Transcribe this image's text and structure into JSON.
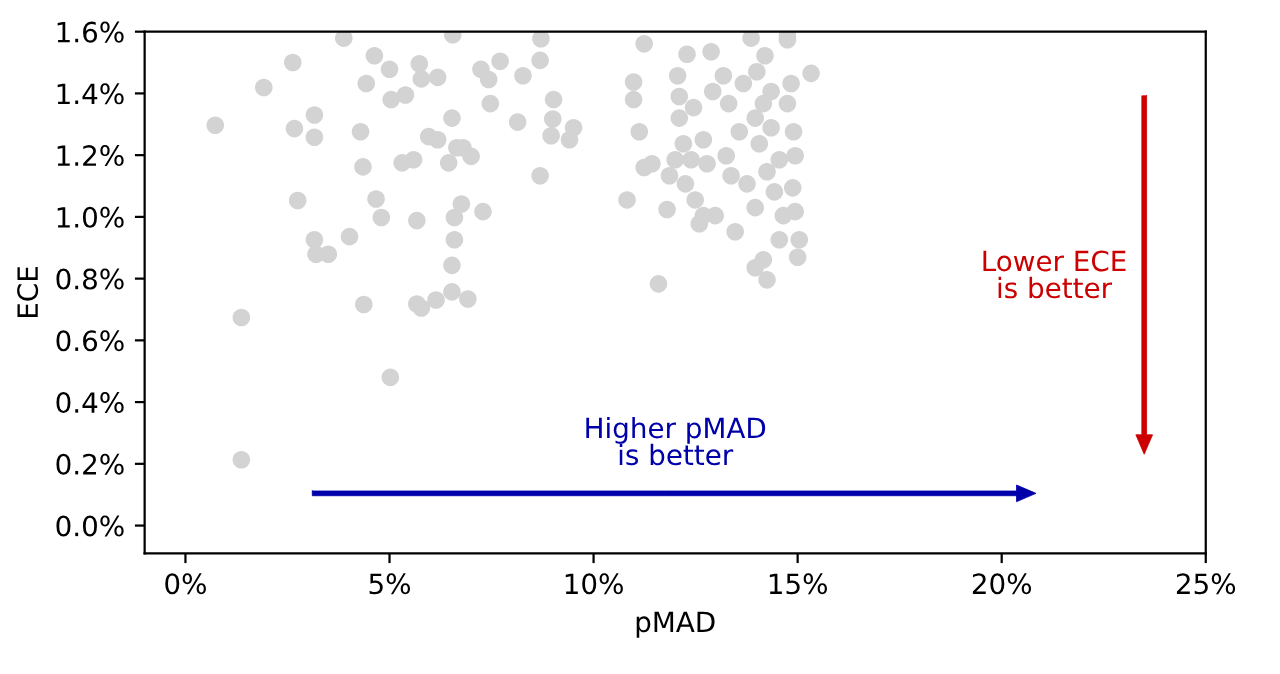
{
  "chart_data": {
    "type": "scatter",
    "xlabel": "pMAD",
    "ylabel": "ECE",
    "annotations": [
      "Higher pMAD\nis better",
      "Lower ECE\nis better"
    ],
    "xlim": [
      -1,
      25
    ],
    "ylim": [
      -0.09,
      1.6
    ],
    "xticks": [
      {
        "value": 0,
        "label": "0%"
      },
      {
        "value": 5,
        "label": "5%"
      },
      {
        "value": 10,
        "label": "10%"
      },
      {
        "value": 15,
        "label": "15%"
      },
      {
        "value": 20,
        "label": "20%"
      },
      {
        "value": 25,
        "label": "25%"
      }
    ],
    "yticks": [
      {
        "value": 0,
        "label": "0.0%"
      },
      {
        "value": 0.2,
        "label": "0.2%"
      },
      {
        "value": 0.4,
        "label": "0.4%"
      },
      {
        "value": 0.6,
        "label": "0.6%"
      },
      {
        "value": 0.8,
        "label": "0.8%"
      },
      {
        "value": 1.0,
        "label": "1.0%"
      },
      {
        "value": 1.2,
        "label": "1.2%"
      },
      {
        "value": 1.4,
        "label": "1.4%"
      },
      {
        "value": 1.6,
        "label": "1.6%"
      }
    ],
    "grid": false,
    "legend": false,
    "marker": "circle",
    "series": [
      {
        "color": "#d3d3d3",
        "x": [
          0.73,
          1.37,
          1.37,
          1.92,
          2.63,
          2.67,
          2.75,
          3.16,
          3.16,
          3.16,
          3.2,
          3.5,
          3.88,
          4.02,
          4.29,
          4.35,
          4.37,
          4.43,
          4.63,
          4.67,
          4.8,
          5.0,
          5.02,
          5.04,
          5.39,
          5.31,
          5.59,
          5.67,
          5.67,
          5.78,
          5.73,
          5.78,
          6.18,
          5.96,
          6.18,
          6.14,
          6.45,
          6.53,
          6.53,
          6.55,
          6.59,
          6.59,
          6.53,
          6.65,
          6.76,
          6.8,
          7.0,
          6.92,
          7.29,
          7.24,
          7.43,
          7.47,
          7.71,
          8.14,
          8.27,
          8.69,
          8.71,
          8.69,
          9.02,
          9.0,
          8.96,
          9.41,
          9.51,
          10.82,
          10.98,
          10.98,
          11.24,
          11.12,
          11.24,
          11.43,
          11.59,
          11.8,
          11.86,
          12.06,
          12.1,
          12.29,
          12.45,
          12.2,
          12.39,
          12.25,
          12.49,
          12.69,
          12.59,
          12.88,
          12.92,
          12.69,
          12.78,
          12.98,
          13.18,
          13.31,
          13.37,
          13.47,
          13.57,
          13.67,
          13.86,
          13.96,
          14.16,
          14.25,
          14.0,
          14.16,
          14.06,
          13.96,
          14.2,
          14.35,
          14.25,
          14.43,
          14.55,
          14.65,
          14.75,
          14.75,
          14.84,
          14.9,
          14.94,
          14.88,
          14.94,
          15.04,
          15.0,
          14.55,
          14.35,
          15.33,
          14.75,
          13.96,
          13.76,
          13.25,
          12.1,
          12.0
        ],
        "values": [
          1.297,
          0.674,
          0.213,
          1.419,
          1.5,
          1.286,
          1.053,
          1.33,
          1.258,
          0.926,
          0.879,
          0.879,
          1.579,
          0.936,
          1.276,
          1.162,
          0.716,
          1.432,
          1.522,
          1.058,
          0.998,
          1.478,
          0.48,
          1.38,
          1.395,
          1.175,
          1.185,
          0.988,
          0.718,
          0.705,
          1.496,
          1.447,
          1.452,
          1.26,
          1.25,
          0.731,
          1.175,
          1.32,
          0.757,
          1.59,
          0.998,
          0.926,
          0.843,
          1.224,
          1.042,
          1.224,
          1.196,
          0.734,
          1.017,
          1.478,
          1.445,
          1.367,
          1.504,
          1.307,
          1.457,
          1.133,
          1.577,
          1.507,
          1.38,
          1.317,
          1.263,
          1.25,
          1.289,
          1.055,
          1.437,
          1.38,
          1.561,
          1.276,
          1.16,
          1.172,
          0.783,
          1.024,
          1.133,
          1.457,
          1.32,
          1.527,
          1.354,
          1.237,
          1.185,
          1.107,
          1.055,
          1.004,
          0.978,
          1.535,
          1.406,
          1.25,
          1.172,
          1.004,
          1.457,
          1.367,
          1.133,
          0.952,
          1.276,
          1.432,
          1.579,
          0.835,
          0.861,
          0.796,
          1.47,
          1.367,
          1.237,
          1.03,
          1.522,
          1.406,
          1.146,
          1.081,
          0.926,
          1.004,
          1.574,
          1.367,
          1.432,
          1.276,
          1.198,
          1.094,
          1.017,
          0.926,
          0.869,
          1.185,
          1.289,
          1.465,
          1.587,
          1.32,
          1.107,
          1.198,
          1.39,
          1.185
        ]
      }
    ]
  }
}
